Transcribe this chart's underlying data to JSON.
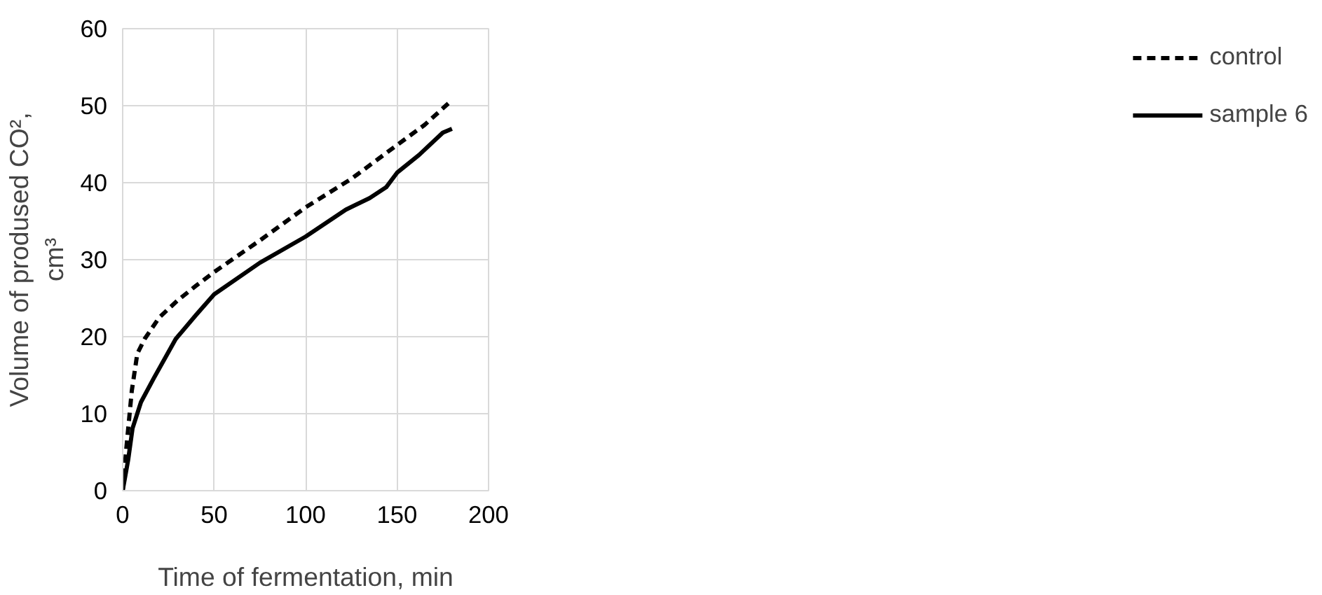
{
  "chart_data": {
    "type": "line",
    "xlabel": "Time of fermentation, min",
    "ylabel": "Volume of prodused CO²,\ncm³",
    "xlim": [
      0,
      200
    ],
    "xticks": [
      0,
      50,
      100,
      150,
      200
    ],
    "ylim": [
      0,
      60
    ],
    "yticks": [
      0,
      10,
      20,
      30,
      40,
      50,
      60
    ],
    "grid": true,
    "legend": "right",
    "series": [
      {
        "name": "control",
        "color": "#000000",
        "line_style": "dashed",
        "x": [
          0,
          2,
          5,
          8,
          12,
          20,
          30,
          40,
          50,
          75,
          100,
          125,
          150,
          165,
          178
        ],
        "values": [
          0,
          5.5,
          13,
          17.8,
          19.7,
          22.5,
          24.7,
          26.6,
          28.4,
          32.5,
          36.8,
          40.5,
          44.9,
          47.5,
          50.3
        ]
      },
      {
        "name": "sample 6",
        "color": "#000000",
        "line_style": "solid",
        "x": [
          0,
          3,
          5.4,
          10,
          17,
          29,
          40,
          50,
          75,
          100,
          122,
          135,
          144,
          150,
          162,
          175,
          180
        ],
        "values": [
          0,
          4,
          8.1,
          11.5,
          14.6,
          19.7,
          22.8,
          25.5,
          29.6,
          33,
          36.5,
          38,
          39.4,
          41.3,
          43.6,
          46.5,
          47
        ]
      }
    ]
  }
}
